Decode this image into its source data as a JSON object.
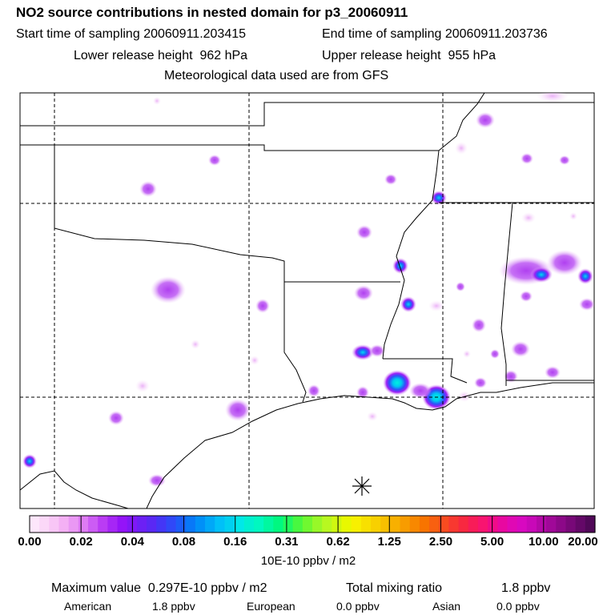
{
  "header": {
    "title": "NO2 source contributions in nested domain for p3_20060911",
    "start_label": "Start time of sampling",
    "start_value": "20060911.203415",
    "end_label": "End time of sampling",
    "end_value": "20060911.203736",
    "lower_label": "Lower release height",
    "lower_value": "962 hPa",
    "upper_label": "Upper release height",
    "upper_value": "955 hPa",
    "met_note": "Meteorological data used are from GFS"
  },
  "colorbar": {
    "tick_labels": [
      "0.00",
      "0.02",
      "0.04",
      "0.08",
      "0.16",
      "0.31",
      "0.62",
      "1.25",
      "2.50",
      "5.00",
      "10.00",
      "20.00"
    ],
    "units": "10E-10 ppbv / m2",
    "colors": [
      "#fde6fb",
      "#fbd8f8",
      "#f8c6f6",
      "#f4b0f4",
      "#ea98f4",
      "#de7cf4",
      "#cc5cf4",
      "#ba3cf4",
      "#a626f6",
      "#9414f8",
      "#8018f6",
      "#6c20f4",
      "#5a28f4",
      "#4436f6",
      "#3048f8",
      "#1c5cf8",
      "#0878f8",
      "#0090f8",
      "#00a8f8",
      "#00c0f8",
      "#00d0f0",
      "#00e8e8",
      "#00f0d0",
      "#00f8c0",
      "#00f8a0",
      "#00f880",
      "#20f860",
      "#48f840",
      "#70f830",
      "#98f828",
      "#b8f820",
      "#d0f810",
      "#e8f800",
      "#f8f000",
      "#f8e000",
      "#f8d000",
      "#f8c000",
      "#f8b000",
      "#f89c00",
      "#f88800",
      "#f87400",
      "#f86010",
      "#f84c20",
      "#f83830",
      "#f82840",
      "#f81c58",
      "#f81470",
      "#f00c88",
      "#e808a0",
      "#e008b4",
      "#d808c0",
      "#c808b8",
      "#b408a8",
      "#a00898",
      "#8c0888",
      "#780878",
      "#640868",
      "#500858"
    ]
  },
  "footer": {
    "max_label": "Maximum value",
    "max_value": "0.297E-10 ppbv / m2",
    "total_label": "Total mixing ratio",
    "total_value": "1.8 ppbv",
    "american_label": "American",
    "american_value": "1.8 ppbv",
    "european_label": "European",
    "european_value": "0.0 ppbv",
    "asian_label": "Asian",
    "asian_value": "0.0 ppbv"
  },
  "chart_data": {
    "type": "heatmap",
    "title": "NO2 source contributions in nested domain for p3_20060911",
    "color_scale_levels": [
      0.0,
      0.02,
      0.04,
      0.08,
      0.16,
      0.31,
      0.62,
      1.25,
      2.5,
      5.0,
      10.0,
      20.0
    ],
    "units": "10E-10 ppbv / m2",
    "max_value": 0.297
  }
}
